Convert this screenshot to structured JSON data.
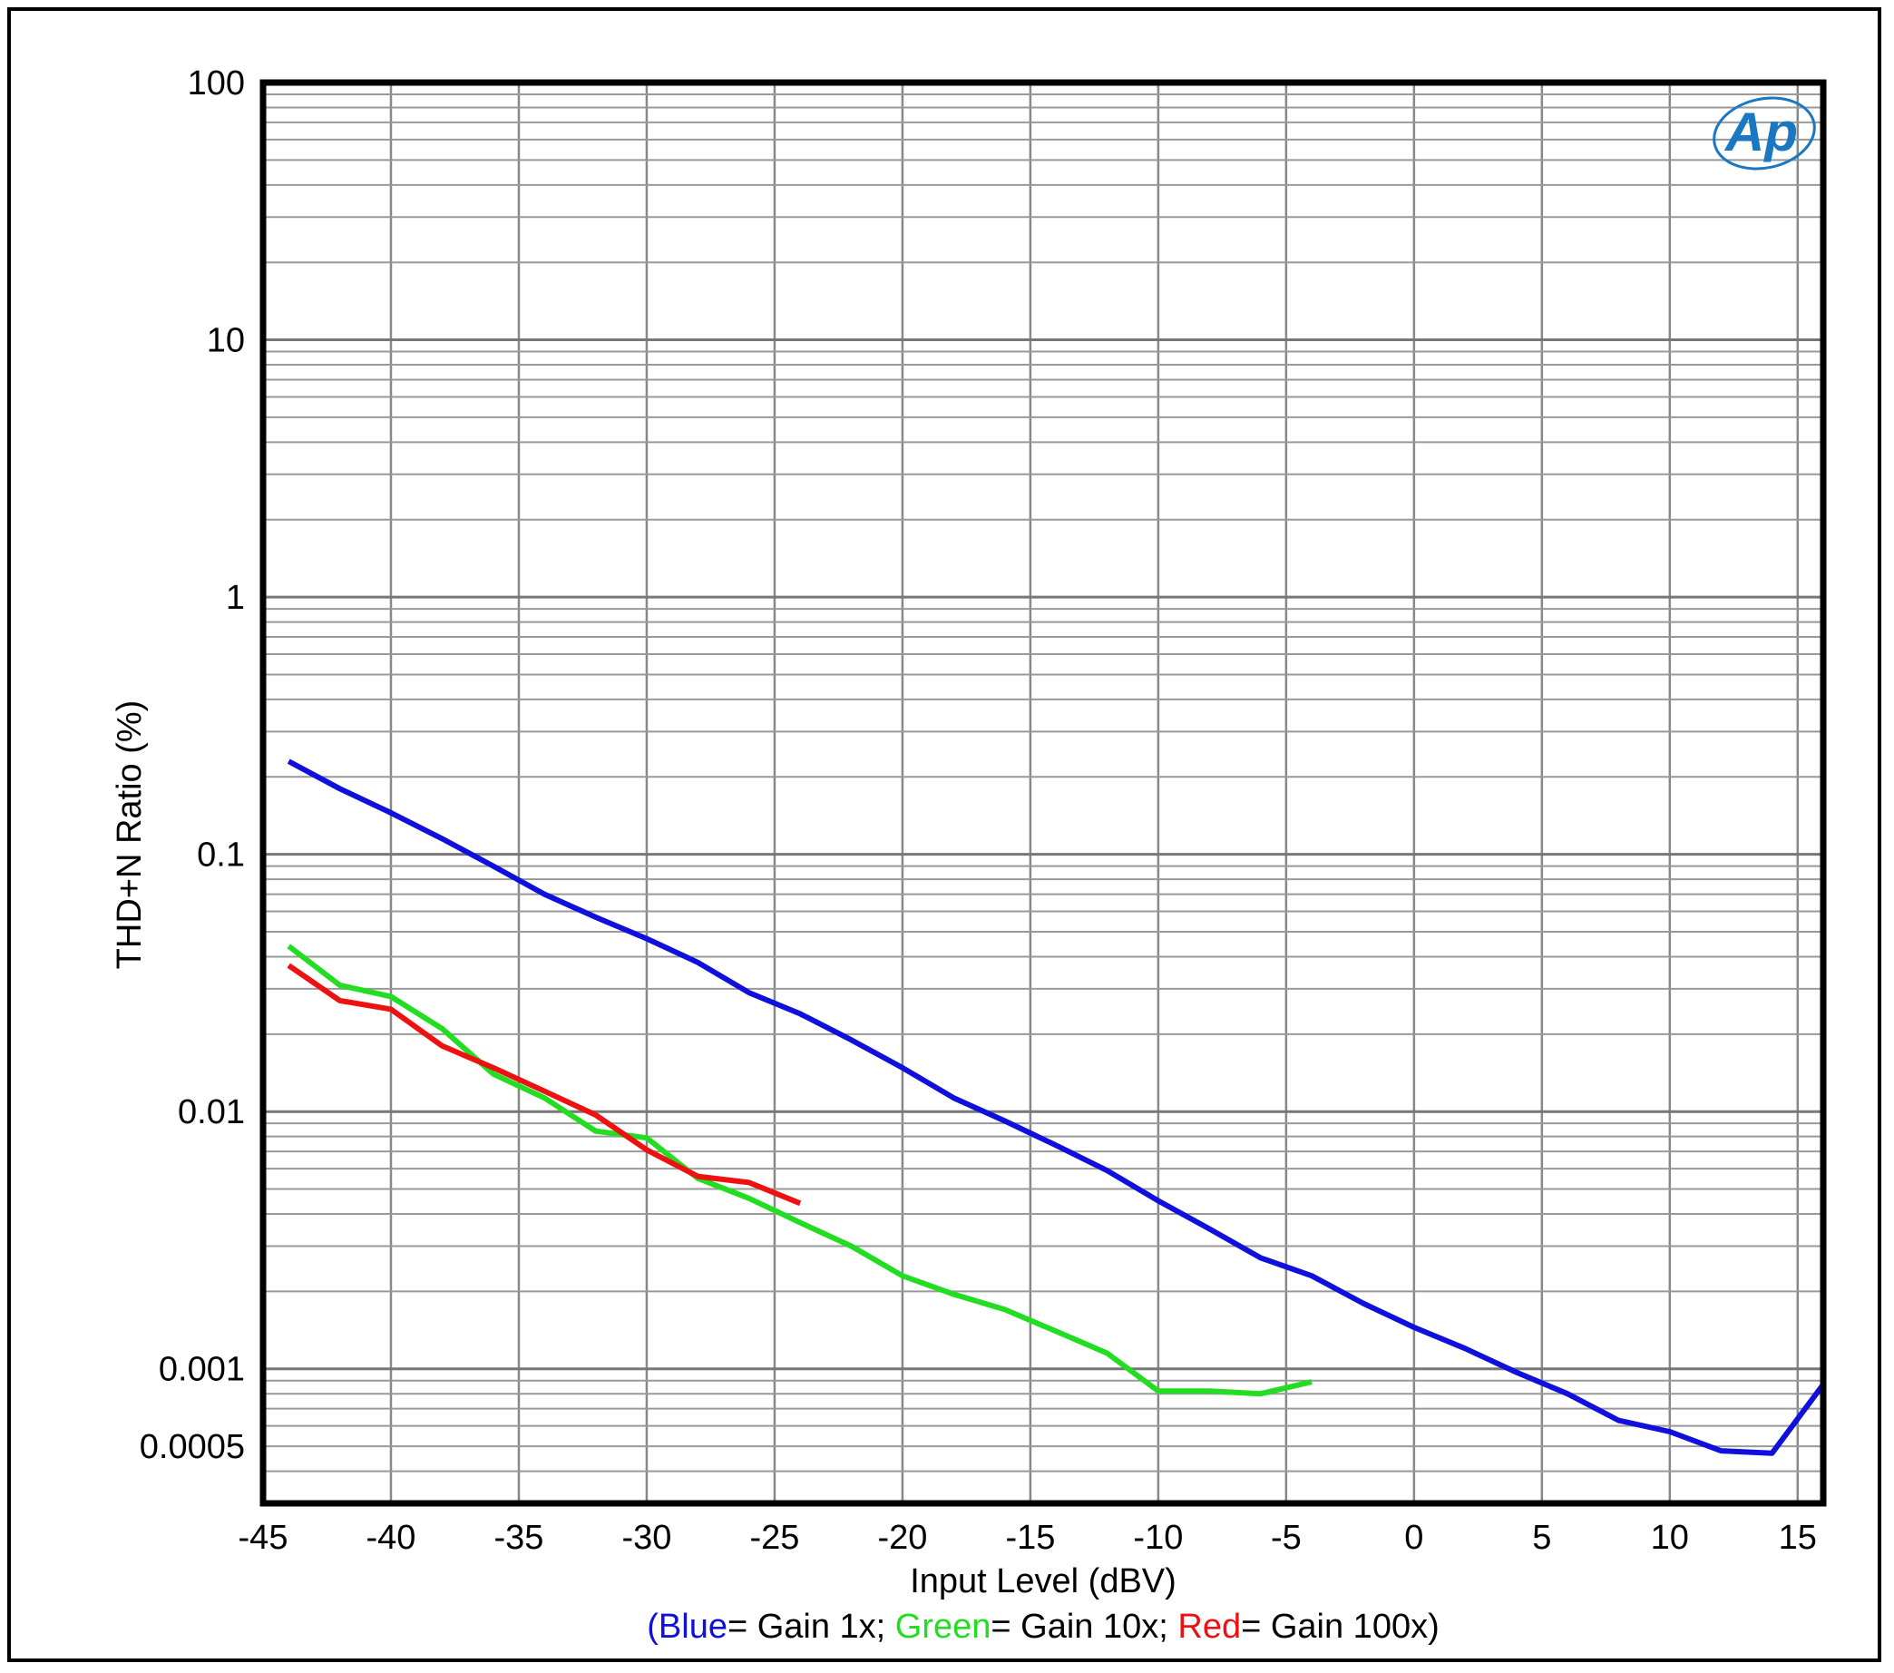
{
  "chart_data": {
    "type": "line",
    "xlabel": "Input Level (dBV)",
    "ylabel": "THD+N Ratio (%)",
    "xlim": [
      -45,
      16
    ],
    "ylim": [
      0.0003,
      100
    ],
    "yscale": "log",
    "xticks": [
      -45,
      -40,
      -35,
      -30,
      -25,
      -20,
      -15,
      -10,
      -5,
      0,
      5,
      10,
      15
    ],
    "xtick_labels": [
      "-45",
      "-40",
      "-35",
      "-30",
      "-25",
      "-20",
      "-15",
      "-10",
      "-5",
      "0",
      "5",
      "10",
      "15"
    ],
    "yticks": [
      100,
      10,
      1,
      0.1,
      0.01,
      0.001,
      0.0005
    ],
    "ytick_labels": [
      "100",
      "10",
      "1",
      "0.1",
      "0.01",
      "0.001",
      "0.0005"
    ],
    "grid": true,
    "series": [
      {
        "color": "#1010dd",
        "x": [
          -44,
          -42,
          -40,
          -38,
          -36,
          -34,
          -32,
          -30,
          -28,
          -26,
          -24,
          -22,
          -20,
          -18,
          -16,
          -14,
          -12,
          -10,
          -8,
          -6,
          -4,
          -2,
          0,
          2,
          4,
          6,
          8,
          10,
          12,
          14,
          16
        ],
        "y": [
          0.23,
          0.18,
          0.145,
          0.115,
          0.09,
          0.07,
          0.057,
          0.047,
          0.038,
          0.029,
          0.024,
          0.019,
          0.0148,
          0.0113,
          0.0092,
          0.0074,
          0.0059,
          0.0045,
          0.0035,
          0.0027,
          0.0023,
          0.0018,
          0.00145,
          0.0012,
          0.00097,
          0.0008,
          0.00063,
          0.00057,
          0.00048,
          0.00047,
          0.00087
        ]
      },
      {
        "color": "#22dd22",
        "x": [
          -44,
          -42,
          -40,
          -38,
          -36,
          -34,
          -32,
          -30,
          -28,
          -26,
          -24,
          -22,
          -20,
          -18,
          -16,
          -14,
          -12,
          -10,
          -8,
          -6,
          -4
        ],
        "y": [
          0.044,
          0.031,
          0.028,
          0.021,
          0.014,
          0.0113,
          0.0084,
          0.0079,
          0.0055,
          0.0046,
          0.0037,
          0.003,
          0.0023,
          0.00195,
          0.0017,
          0.0014,
          0.00115,
          0.00082,
          0.00082,
          0.0008,
          0.00089
        ]
      },
      {
        "color": "#ee1111",
        "x": [
          -44,
          -42,
          -40,
          -38,
          -36,
          -34,
          -32,
          -30,
          -28,
          -26,
          -24
        ],
        "y": [
          0.037,
          0.027,
          0.025,
          0.018,
          0.0148,
          0.012,
          0.0097,
          0.0071,
          0.0056,
          0.0053,
          0.0044
        ]
      }
    ],
    "legend": {
      "placement": "bottom-center",
      "open": "(",
      "blue": "Blue",
      "blue_text": "= Gain 1x; ",
      "green": "Green",
      "green_text": "= Gain 10x; ",
      "red": "Red",
      "red_text": "= Gain 100x)",
      "blue_color": "#1010dd",
      "green_color": "#22dd22",
      "red_color": "#ee1111"
    },
    "logo": {
      "text": "Ap",
      "color": "#1a78c2"
    }
  }
}
